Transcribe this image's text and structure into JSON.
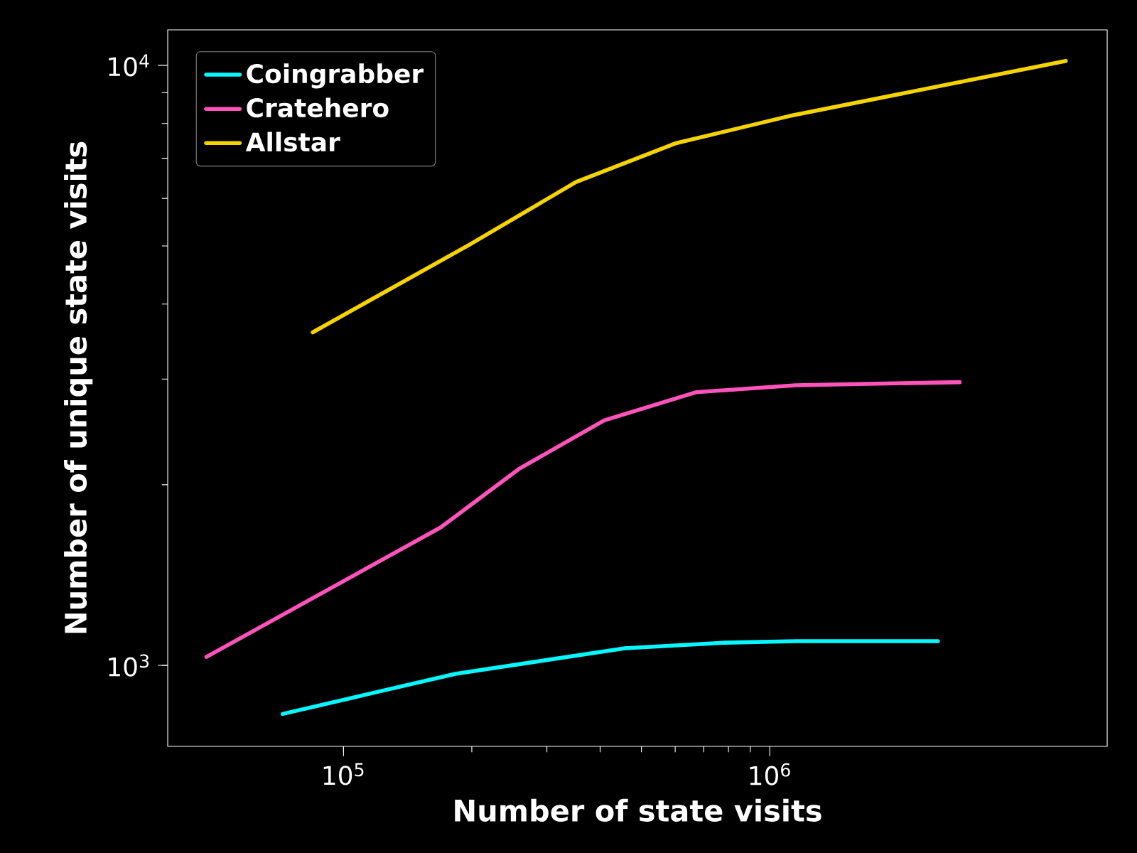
{
  "chart_data": {
    "type": "line",
    "xlabel": "Number of state visits",
    "ylabel": "Number of unique state visits",
    "log": "xy",
    "legend": "top left",
    "xlim": [
      38700,
      6190000
    ],
    "ylim": [
      733,
      11460
    ],
    "xticks": [
      {
        "value": 100000,
        "label": "10$^{5}$"
      },
      {
        "value": 1000000,
        "label": "10$^{6}$"
      }
    ],
    "yticks": [
      {
        "value": 1000,
        "label": "10$^{3}$"
      },
      {
        "value": 10000,
        "label": "10$^{4}$"
      }
    ],
    "series": [
      {
        "name": "Coingrabber",
        "color": "#08f7fe",
        "x": [
          72000,
          183000,
          457000,
          785000,
          1150000,
          2480000
        ],
        "values": [
          830,
          968,
          1068,
          1091,
          1097,
          1097
        ]
      },
      {
        "name": "Cratehero",
        "color": "#fe53bb",
        "x": [
          47700,
          169000,
          258000,
          409000,
          673000,
          1150000,
          2790000
        ],
        "values": [
          1033,
          1698,
          2125,
          2560,
          2853,
          2930,
          2965
        ]
      },
      {
        "name": "Allstar",
        "color": "#f5d300",
        "x": [
          84700,
          197000,
          351000,
          600000,
          1110000,
          4950000
        ],
        "values": [
          3590,
          5020,
          6390,
          7410,
          8230,
          10170
        ]
      }
    ]
  }
}
